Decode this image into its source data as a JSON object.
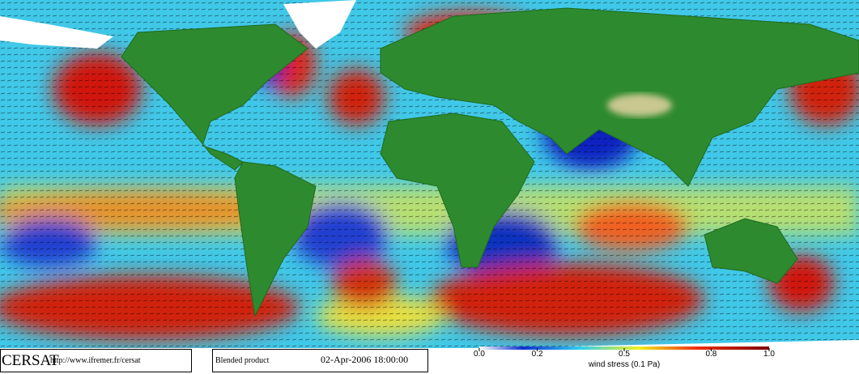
{
  "header": {
    "logo": "CERSAT",
    "url": "http://www.ifremer.fr/cersat",
    "product": "Blended product",
    "date": "02-Apr-2006 18:00:00"
  },
  "colorbar": {
    "title": "wind stress (0.1 Pa)",
    "lim": [
      0,
      1
    ],
    "ticks": [
      {
        "value": 0,
        "label": "0.0"
      },
      {
        "value": 0.2,
        "label": "0.2"
      },
      {
        "value": 0.5,
        "label": "0.5"
      },
      {
        "value": 0.8,
        "label": "0.8"
      },
      {
        "value": 1,
        "label": "1.0"
      }
    ]
  }
}
